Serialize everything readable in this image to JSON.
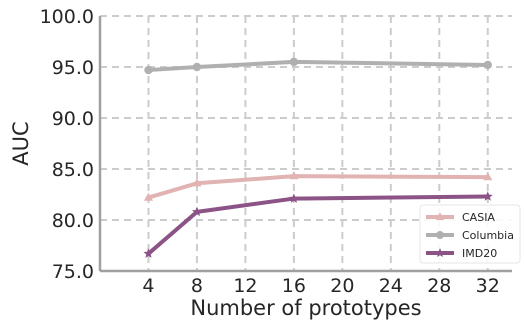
{
  "chart_data": {
    "type": "line",
    "xlabel": "Number of prototypes",
    "ylabel": "AUC",
    "x": [
      4,
      8,
      16,
      32
    ],
    "xticks": [
      4,
      8,
      12,
      16,
      20,
      24,
      28,
      32
    ],
    "xlim": [
      0,
      34
    ],
    "yticks": [
      "75.0",
      "80.0",
      "85.0",
      "90.0",
      "95.0",
      "100.0"
    ],
    "ylim": [
      75,
      100
    ],
    "grid": true,
    "legend_position": "lower-right",
    "series": [
      {
        "name": "CASIA",
        "values": [
          82.2,
          83.6,
          84.3,
          84.2
        ],
        "color": "#e1b3b3",
        "marker": "triangle"
      },
      {
        "name": "Columbia",
        "values": [
          94.7,
          95.0,
          95.5,
          95.2
        ],
        "color": "#b0b0b0",
        "marker": "circle"
      },
      {
        "name": "IMD20",
        "values": [
          76.7,
          80.8,
          82.1,
          82.3
        ],
        "color": "#8c5486",
        "marker": "star"
      }
    ]
  }
}
